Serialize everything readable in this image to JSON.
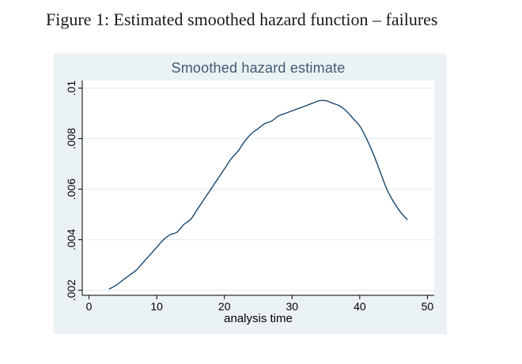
{
  "figure": {
    "caption": "Figure 1: Estimated smoothed hazard function – failures"
  },
  "chart_data": {
    "type": "line",
    "title": "Smoothed hazard estimate",
    "xlabel": "analysis time",
    "ylabel": "",
    "legend": "none",
    "grid": "horizontal",
    "xlim": [
      -1,
      51
    ],
    "ylim": [
      0.0018,
      0.0103
    ],
    "x_ticks": [
      0,
      10,
      20,
      30,
      40,
      50
    ],
    "y_ticks": [
      {
        "value": 0.002,
        "label": ".002"
      },
      {
        "value": 0.004,
        "label": ".004"
      },
      {
        "value": 0.006,
        "label": ".006"
      },
      {
        "value": 0.008,
        "label": ".008"
      },
      {
        "value": 0.01,
        "label": ".01"
      }
    ],
    "series": [
      {
        "name": "smoothed hazard estimate",
        "x": [
          3,
          4,
          5,
          6,
          7,
          8,
          9,
          10,
          11,
          12,
          13,
          14,
          15,
          16,
          17,
          18,
          19,
          20,
          21,
          22,
          23,
          24,
          25,
          26,
          27,
          28,
          29,
          30,
          31,
          32,
          33,
          34,
          35,
          36,
          37,
          38,
          39,
          40,
          41,
          42,
          43,
          44,
          45,
          46,
          47
        ],
        "y": [
          0.00205,
          0.0022,
          0.0024,
          0.0026,
          0.0028,
          0.0031,
          0.0034,
          0.0037,
          0.004,
          0.0042,
          0.0043,
          0.0046,
          0.0048,
          0.0052,
          0.0056,
          0.006,
          0.0064,
          0.0068,
          0.0072,
          0.0075,
          0.0079,
          0.0082,
          0.0084,
          0.0086,
          0.0087,
          0.0089,
          0.009,
          0.0091,
          0.0092,
          0.0093,
          0.0094,
          0.0095,
          0.0095,
          0.0094,
          0.0093,
          0.0091,
          0.0088,
          0.0085,
          0.008,
          0.0074,
          0.0067,
          0.006,
          0.0055,
          0.0051,
          0.0048
        ]
      }
    ],
    "colors": {
      "line": "#1a476f",
      "title_text": "#415a74",
      "chart_bg": "#eaf2f3",
      "plot_bg": "#ffffff",
      "grid": "#dfe9ee",
      "axis": "#000000",
      "tick_text": "#000000"
    }
  }
}
